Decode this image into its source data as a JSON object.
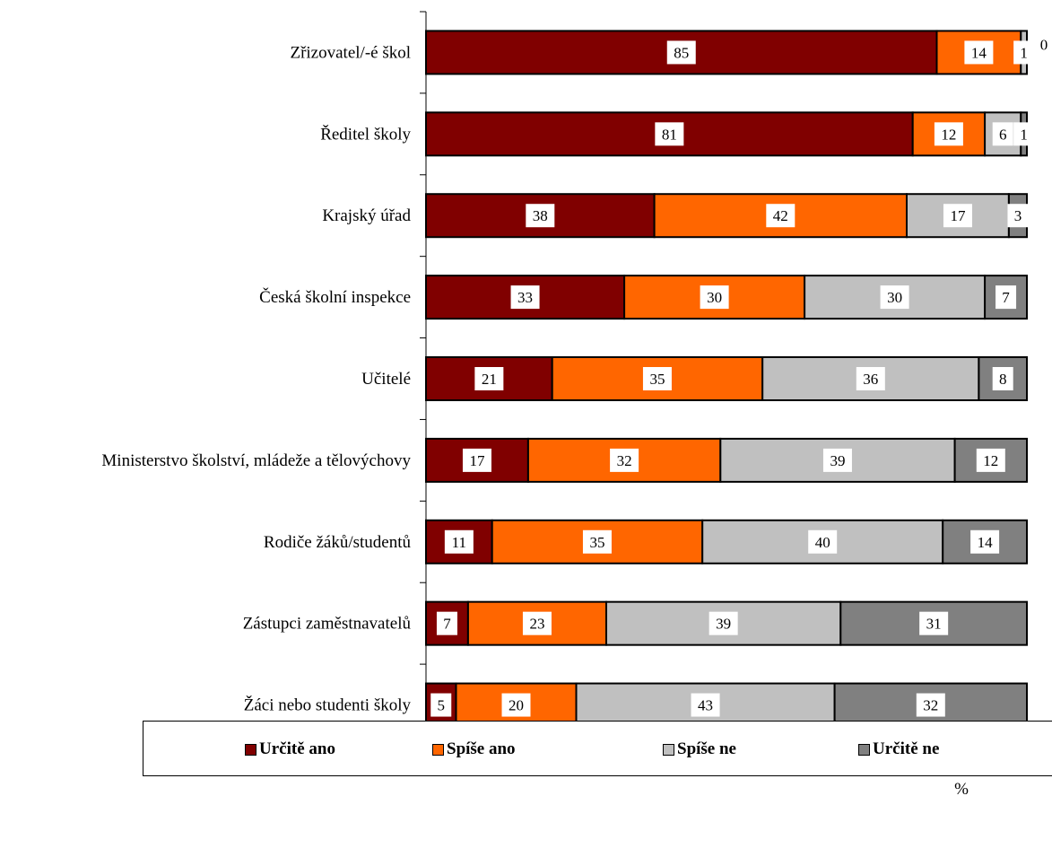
{
  "chart_data": {
    "type": "bar",
    "orientation": "horizontal",
    "stacked": true,
    "categories": [
      "Zřizovatel/-é škol",
      "Ředitel školy",
      "Krajský úřad",
      "Česká školní inspekce",
      "Učitelé",
      "Ministerstvo školství, mládeže a tělovýchovy",
      "Rodiče žáků/studentů",
      "Zástupci zaměstnavatelů",
      "Žáci nebo studenti školy"
    ],
    "series": [
      {
        "name": "Určitě ano",
        "color": "#800000",
        "values": [
          85,
          81,
          38,
          33,
          21,
          17,
          11,
          7,
          5
        ]
      },
      {
        "name": "Spíše ano",
        "color": "#ff6600",
        "values": [
          14,
          12,
          42,
          30,
          35,
          32,
          35,
          23,
          20
        ]
      },
      {
        "name": "Spíše ne",
        "color": "#c0c0c0",
        "values": [
          1,
          6,
          17,
          30,
          36,
          39,
          40,
          39,
          43
        ]
      },
      {
        "name": "Určitě ne",
        "color": "#808080",
        "values": [
          0,
          1,
          3,
          7,
          8,
          12,
          14,
          31,
          32
        ]
      }
    ],
    "xlim": [
      0,
      100
    ],
    "xticks": [
      "0",
      "20",
      "40",
      "60",
      "80",
      "100"
    ],
    "xlabel": "%",
    "legend_position": "bottom",
    "grid": false
  }
}
